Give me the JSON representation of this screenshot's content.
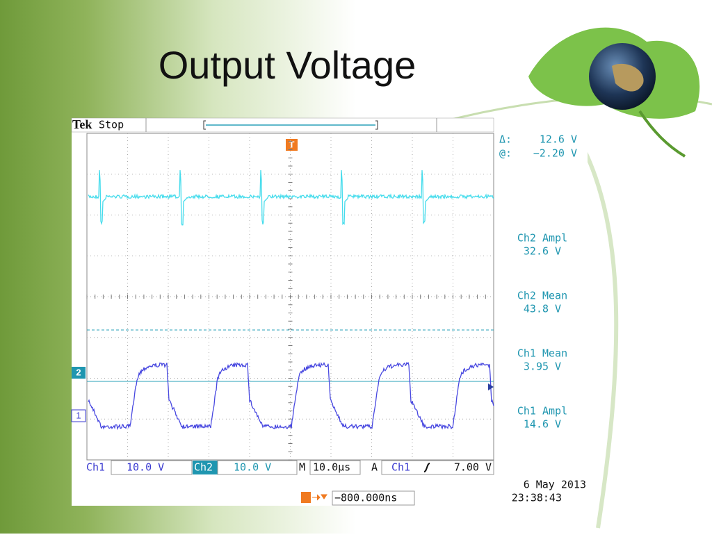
{
  "title": "Output Voltage",
  "scope": {
    "brand": "Tek",
    "status": "Stop",
    "trigger_marker": "T",
    "cursor": {
      "delta_label": "Δ:",
      "delta_value": "12.6 V",
      "at_label": "@:",
      "at_value": "−2.20 V"
    },
    "measurements": [
      {
        "label": "Ch2 Ampl",
        "value": "32.6 V"
      },
      {
        "label": "Ch2 Mean",
        "value": "43.8 V"
      },
      {
        "label": "Ch1 Mean",
        "value": "3.95 V"
      },
      {
        "label": "Ch1 Ampl",
        "value": "14.6 V"
      }
    ],
    "channel_markers": [
      "2",
      "1"
    ],
    "settings": {
      "ch1": "Ch1",
      "ch1_scale": "10.0 V",
      "ch2": "Ch2",
      "ch2_scale": "10.0 V",
      "timebase_label": "M",
      "timebase": "10.0µs",
      "trigger_label": "A",
      "trigger_source": "Ch1",
      "trigger_level": "7.00 V"
    },
    "trigger_position": "−800.000ns",
    "date": "6 May 2013",
    "time": "23:38:43"
  }
}
